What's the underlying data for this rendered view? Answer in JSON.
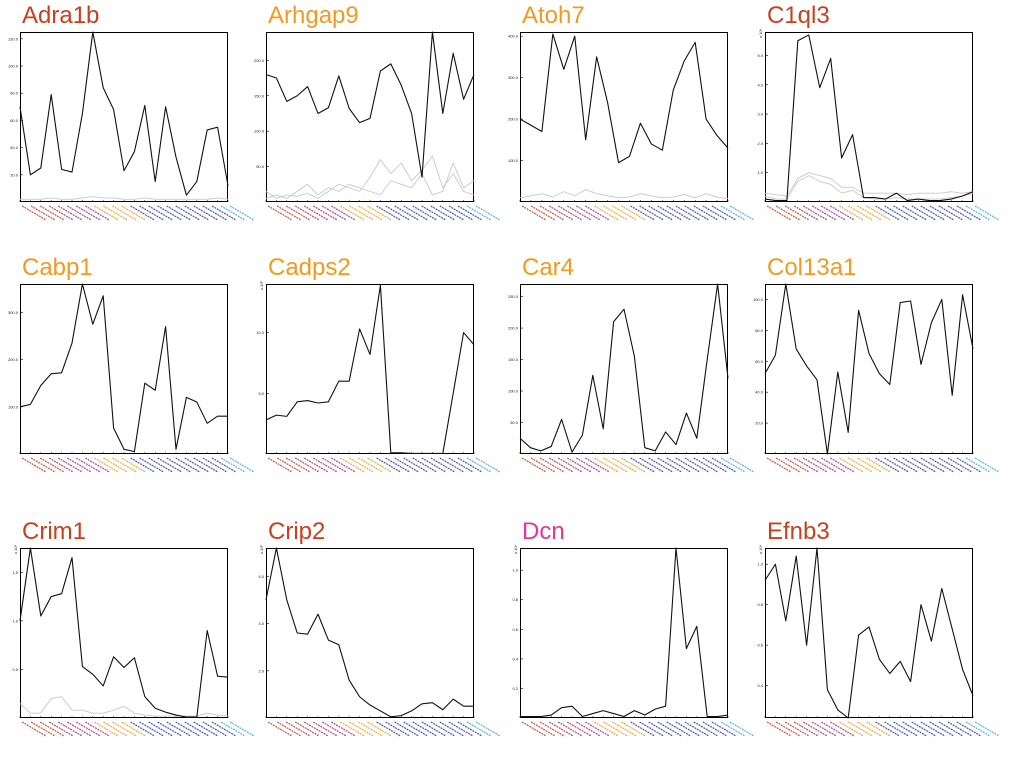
{
  "colors": {
    "title_red": "#c8401e",
    "title_orange": "#f39a1e",
    "title_pink": "#e8349a",
    "line_main": "#111111",
    "line_faint": "#c8c8c8",
    "cat_colors": [
      "#c0392b",
      "#c0392b",
      "#c0392b",
      "#a0305a",
      "#a0305a",
      "#a0305a",
      "#9a2f8a",
      "#9a2f8a",
      "#f39a1e",
      "#f39a1e",
      "#f39a1e",
      "#f39a1e",
      "#2d3aa8",
      "#2d3aa8",
      "#2d3aa8",
      "#2d3aa8",
      "#2d3aa8",
      "#2d3aa8",
      "#2d3aa8",
      "#2d3aa8",
      "#2d3aa8",
      "#2d3aa8",
      "#3aa8e0",
      "#3aa8e0"
    ]
  },
  "chart_data": [
    {
      "type": "line",
      "title": "Adra1b",
      "title_color": "title_red",
      "ylim": [
        0,
        125
      ],
      "yticks": [
        20,
        40,
        60,
        80,
        100,
        120
      ],
      "yfmt": 1,
      "multiplier": "",
      "series": [
        {
          "style": "main",
          "values": [
            70,
            20,
            25,
            79,
            24,
            22,
            65,
            125,
            84,
            68,
            23,
            37,
            71,
            15,
            70,
            33,
            5,
            15,
            53,
            55,
            12
          ]
        },
        {
          "style": "faint",
          "values": [
            2,
            2,
            2,
            3,
            2,
            2,
            3,
            4,
            3,
            3,
            2,
            2,
            3,
            2,
            2,
            2,
            2,
            2,
            2,
            3,
            2
          ]
        }
      ]
    },
    {
      "type": "line",
      "title": "Arhgap9",
      "title_color": "title_orange",
      "ylim": [
        0,
        240
      ],
      "yticks": [
        50,
        100,
        150,
        200
      ],
      "yfmt": 1,
      "multiplier": "",
      "series": [
        {
          "style": "main",
          "values": [
            180,
            175,
            142,
            150,
            163,
            125,
            133,
            178,
            132,
            112,
            118,
            185,
            195,
            165,
            125,
            35,
            240,
            125,
            210,
            145,
            180
          ]
        },
        {
          "style": "faint",
          "values": [
            15,
            5,
            10,
            8,
            12,
            5,
            15,
            25,
            20,
            15,
            35,
            60,
            40,
            55,
            30,
            45,
            65,
            20,
            40,
            15,
            10
          ]
        },
        {
          "style": "faint",
          "values": [
            5,
            10,
            5,
            15,
            25,
            10,
            20,
            15,
            25,
            20,
            15,
            10,
            30,
            25,
            20,
            40,
            10,
            15,
            55,
            20,
            30
          ]
        }
      ]
    },
    {
      "type": "line",
      "title": "Atoh7",
      "title_color": "title_orange",
      "ylim": [
        0,
        410
      ],
      "yticks": [
        100,
        200,
        300,
        400
      ],
      "yfmt": 1,
      "multiplier": "",
      "series": [
        {
          "style": "main",
          "values": [
            200,
            185,
            170,
            405,
            320,
            400,
            150,
            350,
            240,
            95,
            110,
            190,
            140,
            125,
            270,
            340,
            385,
            200,
            160,
            130
          ]
        },
        {
          "style": "faint",
          "values": [
            10,
            15,
            20,
            12,
            25,
            15,
            30,
            20,
            15,
            10,
            12,
            20,
            15,
            10,
            12,
            18,
            10,
            20,
            12,
            8
          ]
        }
      ]
    },
    {
      "type": "line",
      "title": "C1ql3",
      "title_color": "title_red",
      "ylim": [
        0,
        5.8
      ],
      "yticks": [
        1,
        2,
        3,
        4,
        5
      ],
      "yfmt": 1,
      "multiplier": "x 10⁴",
      "series": [
        {
          "style": "main",
          "values": [
            0.1,
            0.05,
            0.05,
            5.5,
            5.7,
            3.9,
            4.9,
            1.5,
            2.3,
            0.15,
            0.15,
            0.1,
            0.3,
            0.05,
            0.1,
            0.05,
            0.05,
            0.1,
            0.2,
            0.35
          ]
        },
        {
          "style": "faint",
          "values": [
            0.2,
            0.1,
            0.1,
            0.7,
            0.9,
            0.7,
            0.6,
            0.3,
            0.4,
            0.15,
            0.1,
            0.1,
            0.15,
            0.1,
            0.1,
            0.1,
            0.1,
            0.15,
            0.2,
            0.3
          ]
        },
        {
          "style": "faint",
          "values": [
            0.3,
            0.25,
            0.2,
            0.8,
            1.0,
            0.9,
            0.8,
            0.5,
            0.5,
            0.3,
            0.3,
            0.3,
            0.3,
            0.25,
            0.3,
            0.3,
            0.3,
            0.35,
            0.3,
            0.35
          ]
        }
      ]
    },
    {
      "type": "line",
      "title": "Cabp1",
      "title_color": "title_orange",
      "ylim": [
        0,
        360
      ],
      "yticks": [
        100,
        200,
        300
      ],
      "yfmt": 1,
      "multiplier": "",
      "series": [
        {
          "style": "main",
          "values": [
            100,
            105,
            145,
            170,
            172,
            235,
            360,
            275,
            335,
            55,
            10,
            5,
            150,
            135,
            270,
            10,
            120,
            110,
            65,
            80,
            80
          ]
        }
      ]
    },
    {
      "type": "line",
      "title": "Cadps2",
      "title_color": "title_orange",
      "ylim": [
        0,
        14
      ],
      "yticks": [
        5,
        10
      ],
      "yfmt": 1,
      "multiplier": "x 10³",
      "series": [
        {
          "style": "main",
          "values": [
            2.8,
            3.2,
            3.1,
            4.3,
            4.4,
            4.2,
            4.3,
            6.0,
            6.0,
            10.3,
            8.2,
            13.9,
            0.1,
            0.1,
            0.05,
            0.05,
            0.05,
            0.05,
            5.0,
            10.0,
            9.0
          ]
        }
      ]
    },
    {
      "type": "line",
      "title": "Car4",
      "title_color": "title_orange",
      "ylim": [
        0,
        270
      ],
      "yticks": [
        50,
        100,
        150,
        200,
        250
      ],
      "yfmt": 1,
      "multiplier": "",
      "series": [
        {
          "style": "main",
          "values": [
            25,
            10,
            5,
            12,
            55,
            3,
            30,
            125,
            40,
            210,
            230,
            155,
            10,
            5,
            35,
            15,
            65,
            25,
            150,
            270,
            120
          ]
        }
      ]
    },
    {
      "type": "line",
      "title": "Col13a1",
      "title_color": "title_orange",
      "ylim": [
        0,
        110
      ],
      "yticks": [
        20,
        40,
        60,
        80,
        100
      ],
      "yfmt": 1,
      "multiplier": "",
      "series": [
        {
          "style": "main",
          "values": [
            52,
            64,
            110,
            68,
            57,
            48,
            0,
            53,
            14,
            93,
            65,
            52,
            45,
            98,
            99,
            58,
            85,
            100,
            38,
            103,
            68
          ]
        }
      ]
    },
    {
      "type": "line",
      "title": "Crim1",
      "title_color": "title_red",
      "ylim": [
        0,
        1.75
      ],
      "yticks": [
        0.5,
        1.0,
        1.5
      ],
      "yfmt": 1,
      "multiplier": "x 10⁴",
      "series": [
        {
          "style": "main",
          "values": [
            1.0,
            1.75,
            1.05,
            1.25,
            1.28,
            1.65,
            0.53,
            0.45,
            0.33,
            0.63,
            0.52,
            0.62,
            0.22,
            0.1,
            0.06,
            0.03,
            0.01,
            0.01,
            0.9,
            0.43,
            0.42
          ]
        },
        {
          "style": "faint",
          "values": [
            0.15,
            0.05,
            0.05,
            0.2,
            0.22,
            0.08,
            0.08,
            0.05,
            0.05,
            0.08,
            0.12,
            0.05,
            0.03,
            0.02,
            0.02,
            0.02,
            0.02,
            0.02,
            0.05,
            0.03,
            0.02
          ]
        }
      ]
    },
    {
      "type": "line",
      "title": "Crip2",
      "title_color": "title_red",
      "ylim": [
        0,
        7.2
      ],
      "yticks": [
        2.0,
        4.0,
        6.0
      ],
      "yfmt": 1,
      "multiplier": "x 10³",
      "series": [
        {
          "style": "main",
          "values": [
            5.0,
            7.2,
            5.0,
            3.6,
            3.55,
            4.4,
            3.3,
            3.1,
            1.6,
            0.9,
            0.55,
            0.3,
            0.05,
            0.1,
            0.3,
            0.6,
            0.65,
            0.35,
            0.8,
            0.5,
            0.5
          ]
        }
      ]
    },
    {
      "type": "line",
      "title": "Dcn",
      "title_color": "title_pink",
      "ylim": [
        0,
        1.15
      ],
      "yticks": [
        0.2,
        0.4,
        0.6,
        0.8,
        1.0
      ],
      "yfmt": 1,
      "multiplier": "x 10⁴",
      "series": [
        {
          "style": "main",
          "values": [
            0.01,
            0.01,
            0.01,
            0.02,
            0.07,
            0.08,
            0.01,
            0.03,
            0.05,
            0.03,
            0.01,
            0.05,
            0.02,
            0.06,
            0.08,
            1.15,
            0.47,
            0.62,
            0.01,
            0.01,
            0.02
          ]
        }
      ]
    },
    {
      "type": "line",
      "title": "Efnb3",
      "title_color": "title_red",
      "ylim": [
        0.24,
        1.08
      ],
      "yticks": [
        0.4,
        0.6,
        0.8,
        1.0
      ],
      "yfmt": 1,
      "multiplier": "x 10⁴",
      "series": [
        {
          "style": "main",
          "values": [
            0.92,
            1.0,
            0.72,
            1.04,
            0.6,
            1.08,
            0.38,
            0.28,
            0.24,
            0.65,
            0.69,
            0.53,
            0.46,
            0.52,
            0.42,
            0.8,
            0.62,
            0.88,
            0.68,
            0.48,
            0.35
          ]
        }
      ]
    }
  ]
}
